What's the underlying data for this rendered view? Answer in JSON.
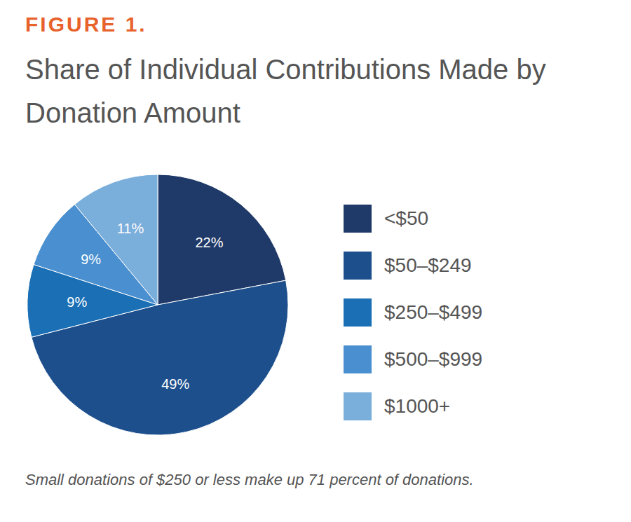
{
  "chart_data": {
    "type": "pie",
    "figure_label": "FIGURE 1.",
    "title": "Share of Individual Contributions Made by Donation Amount",
    "categories": [
      "<$50",
      "$50–$249",
      "$250–$499",
      "$500–$999",
      "$1000+"
    ],
    "values": [
      22,
      49,
      9,
      9,
      11
    ],
    "value_labels": [
      "22%",
      "49%",
      "9%",
      "9%",
      "11%"
    ],
    "colors": [
      "#1f3a68",
      "#1d4f8c",
      "#1a6fb5",
      "#4a8fcf",
      "#7aaedb"
    ],
    "data_labels": true,
    "legend": "right",
    "caption": "Small donations of $250 or less make up 71 percent of donations."
  }
}
